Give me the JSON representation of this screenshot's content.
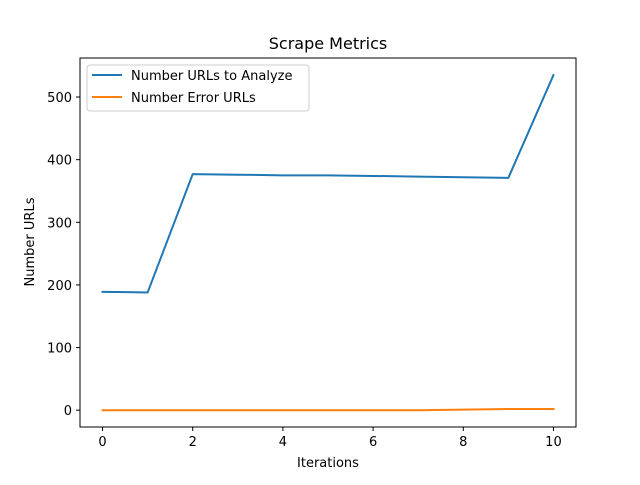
{
  "chart_data": {
    "type": "line",
    "title": "Scrape Metrics",
    "xlabel": "Iterations",
    "ylabel": "Number URLs",
    "xlim": [
      -0.5,
      10.5
    ],
    "ylim": [
      -26.8,
      562.3
    ],
    "x_ticks": [
      0,
      2,
      4,
      6,
      8,
      10
    ],
    "y_ticks": [
      0,
      100,
      200,
      300,
      400,
      500
    ],
    "grid": false,
    "legend_position": "top-left",
    "x": [
      0,
      1,
      2,
      3,
      4,
      5,
      6,
      7,
      8,
      9,
      10
    ],
    "series": [
      {
        "name": "Number URLs to Analyze",
        "color": "#1f77b4",
        "values": [
          189,
          188,
          377,
          376,
          375,
          375,
          374,
          373,
          372,
          371,
          535
        ]
      },
      {
        "name": "Number Error URLs",
        "color": "#ff7f0e",
        "values": [
          0,
          0,
          0,
          0,
          0,
          0,
          0,
          0,
          1,
          2,
          2
        ]
      }
    ]
  }
}
